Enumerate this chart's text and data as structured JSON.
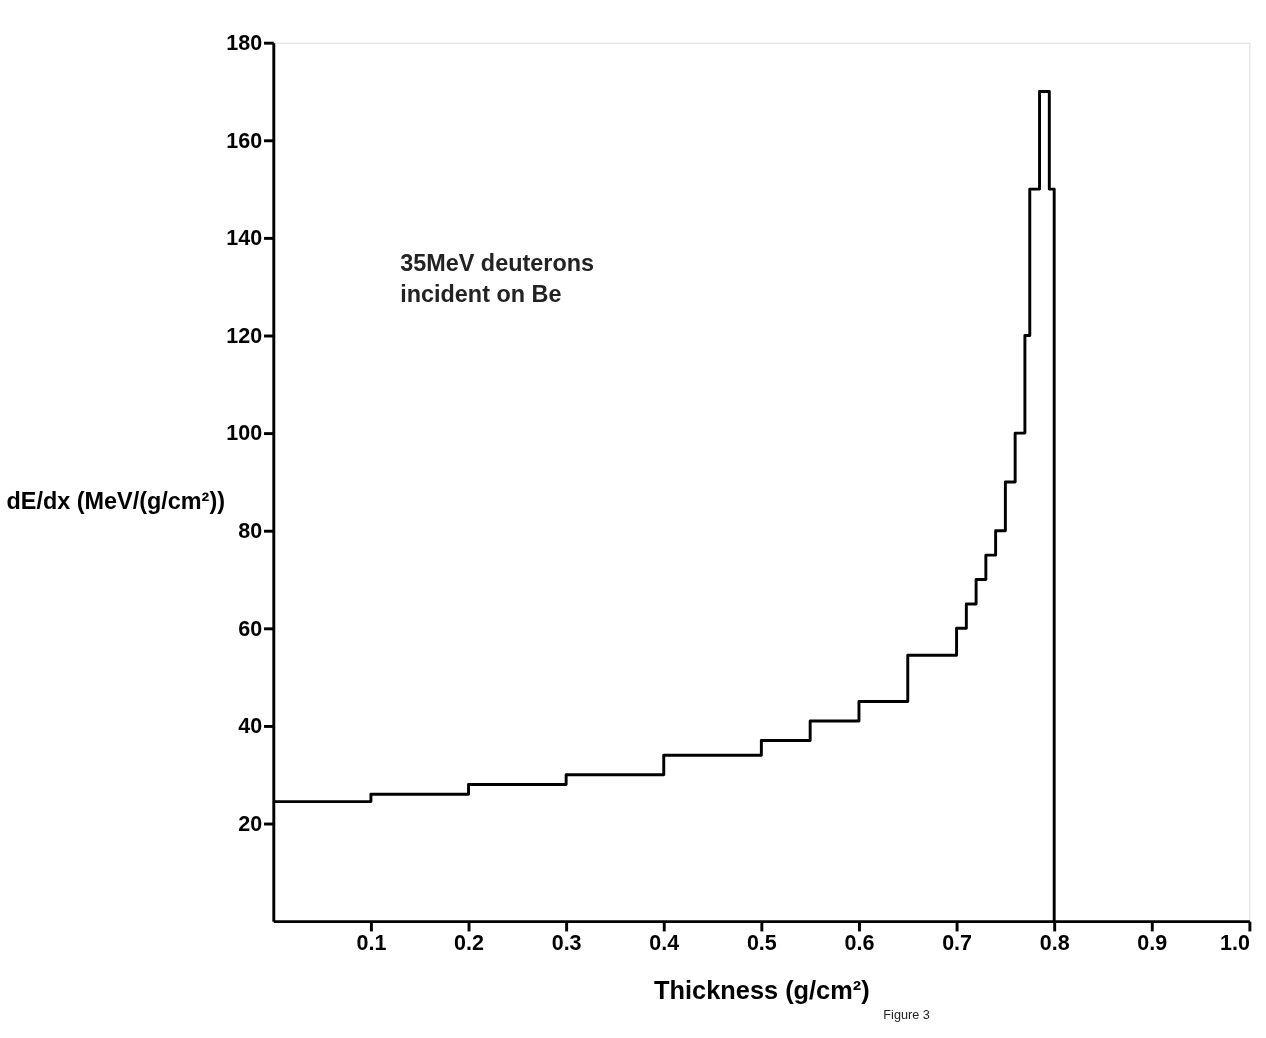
{
  "chart_data": {
    "type": "histogram",
    "xlabel": "Thickness (g/cm²)",
    "ylabel": "dE/dx (MeV/(g/cm²))",
    "annotations": [
      "35MeV deuterons\nincident on Be",
      "Figure 3"
    ],
    "bins": [
      0,
      0.1,
      0.2,
      0.3,
      0.4,
      0.5,
      0.55,
      0.6,
      0.65,
      0.7,
      0.71,
      0.72,
      0.73,
      0.74,
      0.75,
      0.76,
      0.77,
      0.775,
      0.785,
      0.795,
      0.8
    ],
    "values": [
      24.5,
      26,
      28,
      30,
      34,
      37,
      41,
      45,
      54.5,
      60,
      65,
      70,
      75,
      80,
      90,
      100,
      120,
      150,
      170,
      150
    ],
    "color": "#000000",
    "xlim": [
      0,
      1.0
    ],
    "xticks": [
      0.1,
      0.2,
      0.3,
      0.4,
      0.5,
      0.6,
      0.7,
      0.8,
      0.9,
      {
        "value": 1.0,
        "label": "1.0"
      }
    ],
    "ylim": [
      0,
      180
    ],
    "yticks": [
      20,
      40,
      60,
      80,
      100,
      120,
      140,
      160,
      180
    ],
    "grid": false
  }
}
